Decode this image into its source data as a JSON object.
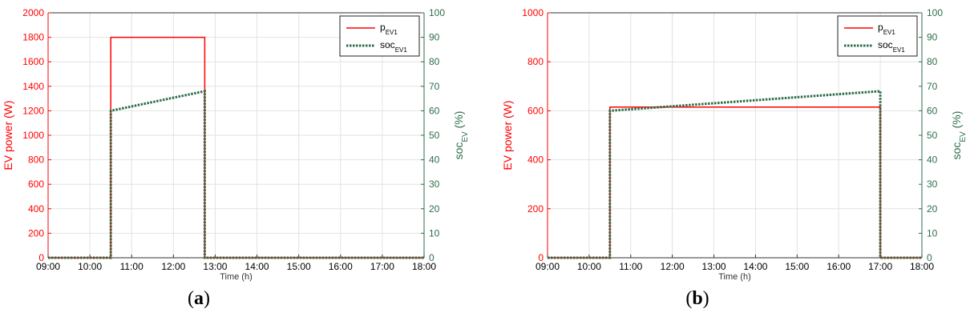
{
  "colors": {
    "power": "#ff0000",
    "soc": "#2e6e4a",
    "grid": "#e2e2e2",
    "axis": "#333333"
  },
  "chart_data": [
    {
      "type": "line",
      "panel_label_prefix": "(",
      "panel_label_letter": "a",
      "panel_label_suffix": ")",
      "xlabel": "Time (h)",
      "ylabel": "EV power (W)",
      "y2label": {
        "base": "soc",
        "sub": "EV",
        "unit": " (%)"
      },
      "xlim": [
        "09:00",
        "18:00"
      ],
      "xticks": [
        "09:00",
        "10:00",
        "11:00",
        "12:00",
        "13:00",
        "14:00",
        "15:00",
        "16:00",
        "17:00",
        "18:00"
      ],
      "ylim": [
        0,
        2000
      ],
      "yticks": [
        0,
        200,
        400,
        600,
        800,
        1000,
        1200,
        1400,
        1600,
        1800,
        2000
      ],
      "y2lim": [
        0,
        100
      ],
      "y2ticks": [
        0,
        10,
        20,
        30,
        40,
        50,
        60,
        70,
        80,
        90,
        100
      ],
      "grid": true,
      "legend_position": "top-right",
      "series": [
        {
          "name": "p_EV1",
          "legend_base": "p",
          "legend_sub": "EV1",
          "axis": "left",
          "style": "solid",
          "x": [
            "09:00",
            "10:30",
            "10:30",
            "12:45",
            "12:45",
            "18:00"
          ],
          "y": [
            0,
            0,
            1800,
            1800,
            0,
            0
          ]
        },
        {
          "name": "soc_EV1",
          "legend_base": "soc",
          "legend_sub": "EV1",
          "axis": "right",
          "style": "dotted",
          "x": [
            "09:00",
            "10:30",
            "10:30",
            "12:45",
            "12:45",
            "18:00"
          ],
          "y": [
            0,
            0,
            60,
            68,
            0,
            0
          ]
        }
      ]
    },
    {
      "type": "line",
      "panel_label_prefix": "(",
      "panel_label_letter": "b",
      "panel_label_suffix": ")",
      "xlabel": "Time (h)",
      "ylabel": "EV power (W)",
      "y2label": {
        "base": "soc",
        "sub": "EV",
        "unit": " (%)"
      },
      "xlim": [
        "09:00",
        "18:00"
      ],
      "xticks": [
        "09:00",
        "10:00",
        "11:00",
        "12:00",
        "13:00",
        "14:00",
        "15:00",
        "16:00",
        "17:00",
        "18:00"
      ],
      "ylim": [
        0,
        1000
      ],
      "yticks": [
        0,
        200,
        400,
        600,
        800,
        1000
      ],
      "y2lim": [
        0,
        100
      ],
      "y2ticks": [
        0,
        10,
        20,
        30,
        40,
        50,
        60,
        70,
        80,
        90,
        100
      ],
      "grid": true,
      "legend_position": "top-right",
      "series": [
        {
          "name": "p_EV1",
          "legend_base": "p",
          "legend_sub": "EV1",
          "axis": "left",
          "style": "solid",
          "x": [
            "09:00",
            "10:30",
            "10:30",
            "17:00",
            "17:00",
            "18:00"
          ],
          "y": [
            0,
            0,
            615,
            615,
            0,
            0
          ]
        },
        {
          "name": "soc_EV1",
          "legend_base": "soc",
          "legend_sub": "EV1",
          "axis": "right",
          "style": "dotted",
          "x": [
            "09:00",
            "10:30",
            "10:30",
            "17:00",
            "17:00",
            "18:00"
          ],
          "y": [
            0,
            0,
            60,
            68,
            0,
            0
          ]
        }
      ]
    }
  ]
}
